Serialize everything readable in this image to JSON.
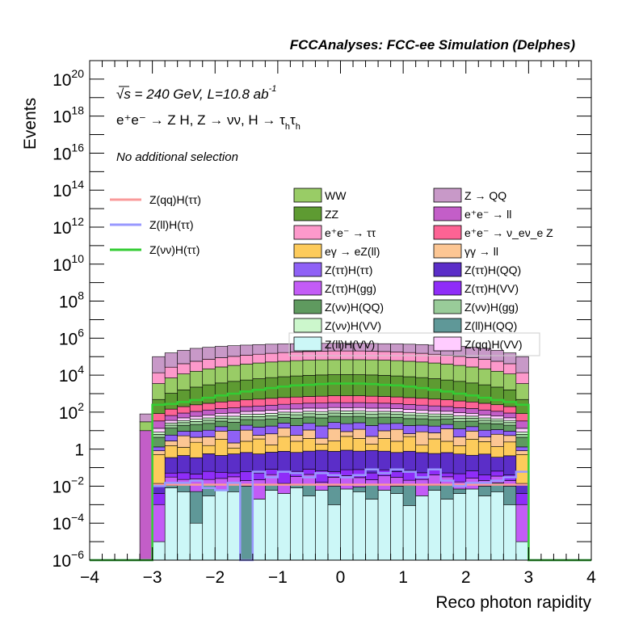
{
  "chart_data": {
    "type": "area",
    "title": "FCCAnalyses: FCC-ee Simulation (Delphes)",
    "xlabel": "Reco photon rapidity",
    "ylabel": "Events",
    "xlim": [
      -4,
      4
    ],
    "ylim": [
      1e-06,
      1e+21
    ],
    "log_y": true,
    "grid": false,
    "x_ticks": [
      "−4",
      "−3",
      "−2",
      "−1",
      "0",
      "1",
      "2",
      "3",
      "4"
    ],
    "y_ticks": [
      {
        "base": "10",
        "exp": "−6",
        "value": 1e-06
      },
      {
        "base": "10",
        "exp": "−4",
        "value": 0.0001
      },
      {
        "base": "10",
        "exp": "−2",
        "value": 0.01
      },
      {
        "base": "1",
        "exp": "",
        "value": 1
      },
      {
        "base": "10",
        "exp": "2",
        "value": 100.0
      },
      {
        "base": "10",
        "exp": "4",
        "value": 10000.0
      },
      {
        "base": "10",
        "exp": "6",
        "value": 1000000.0
      },
      {
        "base": "10",
        "exp": "8",
        "value": 100000000.0
      },
      {
        "base": "10",
        "exp": "10",
        "value": 10000000000.0
      },
      {
        "base": "10",
        "exp": "12",
        "value": 1000000000000.0
      },
      {
        "base": "10",
        "exp": "14",
        "value": 100000000000000.0
      },
      {
        "base": "10",
        "exp": "16",
        "value": 1e+16
      },
      {
        "base": "10",
        "exp": "18",
        "value": 1e+18
      },
      {
        "base": "10",
        "exp": "20",
        "value": 1e+20
      }
    ],
    "annotations": {
      "energy": "√s = 240 GeV, L=10.8 ab",
      "energy_exp": "-1",
      "process": "e⁺e⁻ → Z H, Z → νν, H → τ",
      "process_sub1": "h",
      "process_tau": "τ",
      "process_sub2": "h",
      "selection": "No additional selection"
    },
    "bin_edges": [
      -4.0,
      -3.2,
      -3.0,
      -2.8,
      -2.6,
      -2.4,
      -2.2,
      -2.0,
      -1.8,
      -1.6,
      -1.4,
      -1.2,
      -1.0,
      -0.8,
      -0.6,
      -0.4,
      -0.2,
      0.0,
      0.2,
      0.4,
      0.6,
      0.8,
      1.0,
      1.2,
      1.4,
      1.6,
      1.8,
      2.0,
      2.2,
      2.4,
      2.6,
      2.8,
      3.0,
      4.0
    ],
    "stack_totals": [
      1e-06,
      80,
      100000.0,
      160000.0,
      220000.0,
      280000.0,
      320000.0,
      360000.0,
      390000.0,
      420000.0,
      450000.0,
      470000.0,
      490000.0,
      500000.0,
      510000.0,
      520000.0,
      520000.0,
      520000.0,
      520000.0,
      510000.0,
      500000.0,
      490000.0,
      470000.0,
      450000.0,
      420000.0,
      390000.0,
      360000.0,
      320000.0,
      280000.0,
      220000.0,
      160000.0,
      100000.0,
      1e-06
    ],
    "stack": [
      {
        "name": "Z(ll)H(VV)",
        "color": "#ccf7f7",
        "values": [
          0,
          0,
          1e-05,
          0.008,
          0.005,
          0.0001,
          0.003,
          0.006,
          0.005,
          0,
          0.002,
          0.006,
          0.004,
          0.008,
          0.003,
          0.006,
          0.001,
          0.007,
          0.005,
          0.002,
          0.006,
          0.004,
          0.0009,
          0.003,
          0.006,
          0.002,
          0.004,
          0.007,
          0.003,
          0.005,
          0.001,
          1e-05,
          0
        ]
      },
      {
        "name": "Z(ll)H(QQ)",
        "color": "#5f9898",
        "values": [
          0,
          0,
          0,
          0.003,
          0.008,
          0.005,
          0.01,
          0.0002,
          0.007,
          0.01,
          1e-05,
          0.006,
          1e-05,
          0.005,
          0.01,
          1e-05,
          0.009,
          1e-05,
          0.004,
          0.01,
          8e-05,
          0.006,
          0.01,
          1e-05,
          0.005,
          0.01,
          0.003,
          1e-05,
          0.007,
          0.01,
          0.009,
          0,
          0
        ]
      },
      {
        "name": "Z(ττ)H(gg)",
        "color": "#c35cf6",
        "values": [
          0,
          0,
          0.001,
          0.02,
          0.01,
          0.02,
          0.01,
          0.02,
          0.02,
          0.01,
          0.02,
          0.03,
          0.01,
          0.02,
          0.03,
          0.01,
          0.02,
          0.03,
          0.02,
          0.01,
          0.03,
          0.02,
          0.01,
          0.02,
          0.03,
          0.02,
          0.01,
          0.02,
          0.01,
          0.02,
          0.01,
          0.001,
          0
        ]
      },
      {
        "name": "Z(ττ)H(VV)",
        "color": "#8f2df8",
        "values": [
          0,
          0,
          0.003,
          0.02,
          0.03,
          0.02,
          0.04,
          0.03,
          0.02,
          0.04,
          0.03,
          0.04,
          0.05,
          0.03,
          0.04,
          0.05,
          0.03,
          0.04,
          0.05,
          0.03,
          0.04,
          0.03,
          0.05,
          0.03,
          0.04,
          0.02,
          0.03,
          0.04,
          0.02,
          0.03,
          0.02,
          0.003,
          0
        ]
      },
      {
        "name": "Z(ττ)H(QQ)",
        "color": "#5b2ec8",
        "values": [
          0,
          0,
          0.01,
          0.3,
          0.4,
          0.3,
          0.5,
          0.4,
          0.5,
          0.6,
          0.5,
          0.6,
          0.7,
          0.6,
          0.7,
          0.8,
          0.7,
          0.8,
          0.7,
          0.8,
          0.7,
          0.6,
          0.7,
          0.6,
          0.5,
          0.6,
          0.5,
          0.4,
          0.5,
          0.3,
          0.4,
          0.01,
          0
        ]
      },
      {
        "name": "eγ → eZ(ll)",
        "color": "#fdcb5b",
        "values": [
          0,
          0,
          0.5,
          1.2,
          0.8,
          2,
          1,
          3,
          0.6,
          2,
          3,
          1,
          4,
          2,
          3,
          1,
          2,
          4,
          3,
          1,
          3,
          2,
          4,
          1,
          3,
          2,
          1,
          3,
          2,
          1,
          2,
          0.5,
          0
        ]
      },
      {
        "name": "γγ → ll",
        "color": "#fcc693",
        "values": [
          0,
          0,
          0.3,
          1.2,
          4,
          2,
          3,
          6,
          1,
          8,
          2,
          5,
          9,
          3,
          7,
          2,
          10,
          4,
          8,
          3,
          6,
          9,
          2,
          7,
          4,
          10,
          3,
          6,
          2,
          5,
          3,
          0.3,
          0
        ]
      },
      {
        "name": "Z(ll)H(ττ)",
        "color": "#9999ff",
        "values": [
          0,
          0,
          0.005,
          0.02,
          0.02,
          0.03,
          0.03,
          0.02,
          0.02,
          0.03,
          0.04,
          0.05,
          0.03,
          0.04,
          0.06,
          0.05,
          0.04,
          0.05,
          0.06,
          0.04,
          0.05,
          0.04,
          0.05,
          0.03,
          0.04,
          0.03,
          0.02,
          0.03,
          0.03,
          0.02,
          0.02,
          0.005,
          0
        ]
      },
      {
        "name": "Z(ττ)H(ττ)",
        "color": "#8f61f6",
        "values": [
          0,
          0,
          0.5,
          3,
          4,
          5,
          6,
          7,
          8,
          9,
          10,
          11,
          12,
          13,
          14,
          14,
          15,
          15,
          15,
          14,
          14,
          13,
          12,
          11,
          10,
          9,
          8,
          7,
          6,
          5,
          4,
          0.5,
          0
        ]
      },
      {
        "name": "Z(νν)H(QQ)",
        "color": "#5f9a5f",
        "values": [
          0,
          0,
          3,
          8,
          10,
          12,
          14,
          16,
          18,
          20,
          22,
          24,
          26,
          28,
          30,
          31,
          32,
          32,
          32,
          31,
          30,
          28,
          26,
          24,
          22,
          20,
          18,
          16,
          14,
          12,
          10,
          3,
          0
        ]
      },
      {
        "name": "Z(νν)H(gg)",
        "color": "#99cc99",
        "values": [
          0,
          0,
          2,
          6,
          8,
          10,
          12,
          14,
          16,
          18,
          20,
          22,
          24,
          26,
          28,
          29,
          30,
          30,
          30,
          29,
          28,
          26,
          24,
          22,
          20,
          18,
          16,
          14,
          12,
          10,
          8,
          2,
          0
        ]
      },
      {
        "name": "Z(νν)H(VV)",
        "color": "#ccf7cc",
        "values": [
          0,
          0,
          2,
          6,
          8,
          10,
          12,
          14,
          16,
          18,
          20,
          22,
          24,
          26,
          28,
          29,
          30,
          30,
          30,
          29,
          28,
          26,
          24,
          22,
          20,
          18,
          16,
          14,
          12,
          10,
          8,
          2,
          0
        ]
      },
      {
        "name": "Z(qq)H(VV)",
        "color": "#ffccff",
        "values": [
          0,
          0,
          5,
          10,
          14,
          18,
          22,
          26,
          30,
          34,
          38,
          42,
          46,
          50,
          54,
          56,
          58,
          58,
          58,
          56,
          54,
          50,
          46,
          42,
          38,
          34,
          30,
          26,
          22,
          18,
          14,
          5,
          0
        ]
      },
      {
        "name": "e⁺e⁻ → ll",
        "color": "#c35ec8",
        "values": [
          0,
          10,
          20,
          30,
          40,
          50,
          60,
          70,
          80,
          90,
          100,
          110,
          120,
          130,
          140,
          145,
          150,
          150,
          150,
          145,
          140,
          130,
          120,
          110,
          100,
          90,
          80,
          70,
          60,
          50,
          40,
          20,
          0
        ]
      },
      {
        "name": "e⁺e⁻ → ν_eν_e Z",
        "color": "#fd6394",
        "values": [
          0,
          0,
          50,
          80,
          110,
          140,
          170,
          200,
          230,
          260,
          290,
          320,
          350,
          380,
          400,
          420,
          440,
          440,
          440,
          420,
          400,
          380,
          350,
          320,
          290,
          260,
          230,
          200,
          170,
          140,
          110,
          50,
          0
        ]
      },
      {
        "name": "ZZ",
        "color": "#5e9b32",
        "values": [
          0,
          0,
          400,
          900,
          1400,
          2000,
          2700,
          3400,
          4200,
          5000,
          5900,
          6800,
          7600,
          8400,
          9000,
          9500,
          9800,
          9900,
          9800,
          9500,
          9000,
          8400,
          7600,
          6800,
          5900,
          5000,
          4200,
          3400,
          2700,
          2000,
          1400,
          400,
          0
        ]
      },
      {
        "name": "WW",
        "color": "#99cc66",
        "values": [
          0,
          20,
          3000,
          6000,
          10000,
          14000,
          19000,
          24000,
          29000,
          34000,
          39000,
          44000,
          48000,
          52000,
          55000,
          57000,
          58000,
          58000,
          58000,
          57000,
          55000,
          52000,
          48000,
          44000,
          39000,
          34000,
          29000,
          24000,
          19000,
          14000,
          10000,
          3000,
          0
        ]
      },
      {
        "name": "e⁺e⁻ → ττ",
        "color": "#fd99cb",
        "values": [
          0,
          0,
          10000,
          20000,
          30000,
          40000,
          50000,
          60000,
          70000,
          80000,
          90000,
          100000,
          110000,
          120000,
          125000,
          130000,
          135000,
          135000,
          135000,
          130000,
          125000,
          120000,
          110000,
          100000,
          90000,
          80000,
          70000,
          60000,
          50000,
          40000,
          30000,
          10000,
          0
        ]
      },
      {
        "name": "Z → QQ",
        "color": "#c899c8",
        "values": [
          0,
          50,
          80000,
          130000,
          180000,
          220000,
          250000,
          270000,
          280000,
          290000,
          300000,
          305000,
          310000,
          310000,
          310000,
          310000,
          310000,
          310000,
          310000,
          310000,
          310000,
          310000,
          305000,
          300000,
          290000,
          280000,
          270000,
          250000,
          220000,
          180000,
          130000,
          80000,
          0
        ]
      }
    ],
    "signals": [
      {
        "name": "Z(qq)H(ττ)",
        "color": "#f99a9a",
        "values": [
          1e-06,
          1e-06,
          0.012,
          0.012,
          0.012,
          0.012,
          0.012,
          0.012,
          0.012,
          0.012,
          0.012,
          0.012,
          0.012,
          0.012,
          0.012,
          0.012,
          0.012,
          0.012,
          0.012,
          0.012,
          0.012,
          0.012,
          0.012,
          0.012,
          0.012,
          0.012,
          0.012,
          0.012,
          0.012,
          0.012,
          0.012,
          0.012,
          1e-06
        ]
      },
      {
        "name": "Z(ll)H(ττ)",
        "color": "#9999ff",
        "values": [
          1e-06,
          1e-06,
          0.01,
          0.015,
          0.015,
          0.02,
          0.008,
          0.006,
          0.015,
          1e-06,
          0.06,
          0.03,
          0.06,
          0.05,
          0.03,
          0.05,
          0.04,
          0.03,
          0.04,
          0.08,
          0.05,
          0.08,
          0.06,
          0.03,
          0.08,
          0.02,
          0.01,
          0.015,
          0.015,
          0.02,
          0.03,
          0.06,
          1e-06
        ]
      },
      {
        "name": "Z(νν)H(ττ)",
        "color": "#33cc33",
        "values": [
          1e-06,
          1e-06,
          250,
          280,
          350,
          450,
          600,
          800,
          1000,
          1300,
          1600,
          2000,
          2400,
          2800,
          3000,
          3300,
          3500,
          3500,
          3500,
          3300,
          3000,
          2800,
          2400,
          2000,
          1600,
          1300,
          1000,
          800,
          600,
          450,
          350,
          250,
          1e-06
        ]
      }
    ],
    "legend_left": [
      {
        "name": "Z(qq)H(ττ)",
        "color": "#f99a9a"
      },
      {
        "name": "Z(ll)H(ττ)",
        "color": "#9999ff"
      },
      {
        "name": "Z(νν)H(ττ)",
        "color": "#33cc33"
      }
    ],
    "legend_right": [
      {
        "name": "WW",
        "color": "#99cc66"
      },
      {
        "name": "Z → QQ",
        "color": "#c899c8"
      },
      {
        "name": "ZZ",
        "color": "#5e9b32"
      },
      {
        "name": "e⁺e⁻ → ll",
        "color": "#c35ec8"
      },
      {
        "name": "e⁺e⁻ → ττ",
        "color": "#fd99cb"
      },
      {
        "name": "e⁺e⁻ → ν_eν_e Z",
        "color": "#fd6394"
      },
      {
        "name": "eγ → eZ(ll)",
        "color": "#fdcb5b"
      },
      {
        "name": "γγ → ll",
        "color": "#fcc693"
      },
      {
        "name": "Z(ττ)H(ττ)",
        "color": "#8f61f6"
      },
      {
        "name": "Z(ττ)H(QQ)",
        "color": "#5b2ec8"
      },
      {
        "name": "Z(ττ)H(gg)",
        "color": "#c35cf6"
      },
      {
        "name": "Z(ττ)H(VV)",
        "color": "#8f2df8"
      },
      {
        "name": "Z(νν)H(QQ)",
        "color": "#5f9a5f"
      },
      {
        "name": "Z(νν)H(gg)",
        "color": "#99cc99"
      },
      {
        "name": "Z(νν)H(VV)",
        "color": "#ccf7cc"
      },
      {
        "name": "Z(ll)H(QQ)",
        "color": "#5f9898"
      },
      {
        "name": "Z(ll)H(VV)",
        "color": "#ccf7f7"
      },
      {
        "name": "Z(qq)H(VV)",
        "color": "#ffccff"
      }
    ]
  }
}
